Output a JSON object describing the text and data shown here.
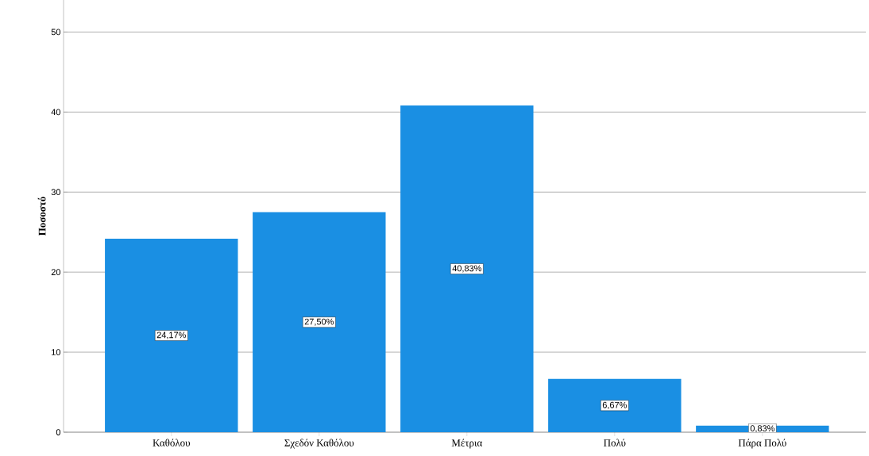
{
  "chart_data": {
    "type": "bar",
    "ylabel": "Ποσοστό",
    "categories": [
      "Καθόλου",
      "Σχεδόν Καθόλου",
      "Μέτρια",
      "Πολύ",
      "Πάρα Πολύ"
    ],
    "values": [
      24.17,
      27.5,
      40.83,
      6.67,
      0.83
    ],
    "value_labels": [
      "24,17%",
      "27,50%",
      "40,83%",
      "6,67%",
      "0,83%"
    ],
    "color": "#1a8fe3",
    "ylim": [
      0,
      54
    ],
    "yticks": [
      0,
      10,
      20,
      30,
      40,
      50
    ],
    "grid": "y"
  }
}
